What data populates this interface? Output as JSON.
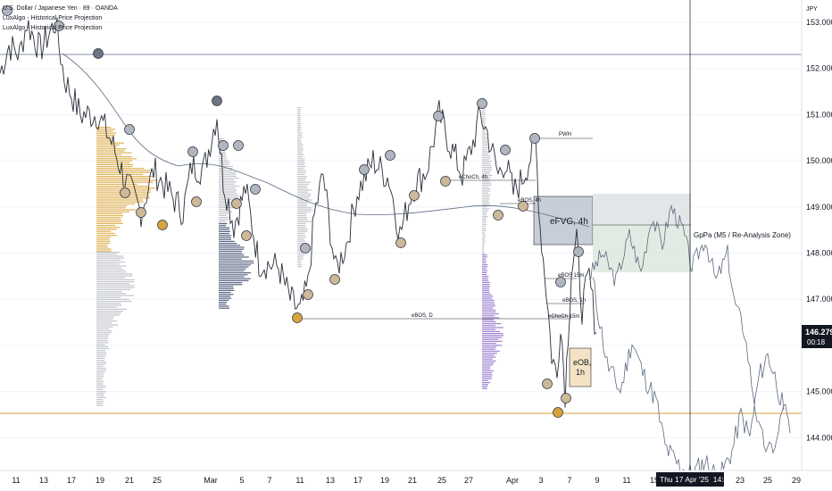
{
  "header": {
    "symbol_line": "U.S. Dollar / Japanese Yen · 89 · OANDA",
    "indicators": [
      "LuxAlgo - Historical Price Projection",
      "LuxAlgo - Historical Price Projection"
    ]
  },
  "price_axis": {
    "currency": "JPY",
    "ticks": [
      "153.000",
      "152.000",
      "151.000",
      "150.000",
      "149.000",
      "148.000",
      "147.000",
      "146.000",
      "145.000",
      "144.000"
    ],
    "last_price": "146.279",
    "countdown": "00:18"
  },
  "time_axis": {
    "ticks": [
      "11",
      "13",
      "17",
      "19",
      "21",
      "25",
      "Mar",
      "5",
      "7",
      "11",
      "13",
      "17",
      "19",
      "21",
      "25",
      "27",
      "Apr",
      "3",
      "7",
      "9",
      "11",
      "15",
      "23",
      "25",
      "29"
    ],
    "crosshair_label": "Thu 17 Apr '25  14:46"
  },
  "annotations": {
    "pwh": "PWH",
    "echoch_4h": "eChoCh, 4h",
    "ebos_4h": "eBOS, 4h",
    "efvg_4h": "eFVG, 4h",
    "ebos_d": "eBOS, D",
    "ebos_15m": "eBOS 15m",
    "ebos_1h": "eBOS, 1h",
    "echoch_15m": "eChoCh 15m",
    "eob_1h": [
      "eOB,",
      "1h"
    ],
    "projection_zone": "GpPa (M5 / Re-Analysis Zone)"
  },
  "colors": {
    "price_line": "#5d6b80",
    "price_candles": "#2a2e39",
    "volume_gold": "#d9a53a",
    "volume_navy": "#3b4a6b",
    "volume_purple": "#8c6bc8",
    "volume_grey": "#b8bcc4",
    "marker_grey": "#b0b6c0",
    "marker_tan": "#cdb898",
    "marker_gold": "#d6a43c",
    "efvg_fill": "#9aa6b8",
    "projection_fill": "#d9e6dc",
    "last_price_bg": "#131722",
    "level_line": "#d8a23a"
  },
  "chart_data": {
    "type": "line",
    "title": "U.S. Dollar / Japanese Yen · 89 · OANDA",
    "xlabel": "",
    "ylabel": "",
    "ylim": [
      143.6,
      153.3
    ],
    "x": [
      "Feb 11",
      "Feb 13",
      "Feb 17",
      "Feb 19",
      "Feb 21",
      "Feb 25",
      "Mar 3",
      "Mar 5",
      "Mar 7",
      "Mar 11",
      "Mar 13",
      "Mar 17",
      "Mar 19",
      "Mar 21",
      "Mar 25",
      "Mar 27",
      "Apr 1",
      "Apr 3",
      "Apr 7",
      "Apr 9",
      "Apr 11",
      "Apr 15",
      "Apr 17",
      "Apr 23",
      "Apr 25",
      "Apr 29"
    ],
    "series": [
      {
        "name": "",
        "values": [
          151.9,
          153.0,
          152.6,
          150.9,
          149.9,
          149.3,
          149.8,
          148.6,
          147.6,
          147.2,
          148.3,
          149.3,
          148.9,
          149.6,
          150.6,
          150.9,
          149.6,
          148.4,
          146.2,
          147.9,
          148.2,
          148.9,
          148.0,
          145.6,
          145.3,
          146.279
        ]
      }
    ],
    "levels": [
      {
        "label": "",
        "value": 152.3
      },
      {
        "label": "",
        "value": 144.6
      },
      {
        "label": "PWH",
        "value": 150.4
      },
      {
        "label": "eBOS, D",
        "value": 146.6
      }
    ],
    "grid": true,
    "legend": "none"
  }
}
